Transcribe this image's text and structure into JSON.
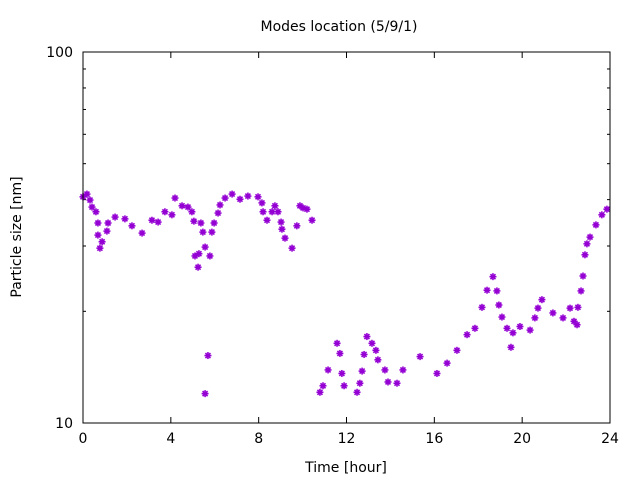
{
  "chart_data": {
    "type": "scatter",
    "title": "Modes location (5/9/1)",
    "xlabel": "Time [hour]",
    "ylabel": "Particle size [nm]",
    "xlim": [
      0,
      24
    ],
    "ylim": [
      10,
      100
    ],
    "yscale": "log",
    "grid": false,
    "legend": "none",
    "xticks": [
      "0",
      "4",
      "8",
      "12",
      "16",
      "20",
      "24"
    ],
    "yticks": [
      "10",
      "100"
    ],
    "series": [
      {
        "name": "modes",
        "color": "#9400d3",
        "marker": "star",
        "points": [
          [
            0.0,
            40.7
          ],
          [
            0.18,
            41.4
          ],
          [
            0.32,
            39.9
          ],
          [
            0.41,
            38.2
          ],
          [
            0.59,
            37.1
          ],
          [
            0.68,
            34.6
          ],
          [
            0.68,
            32.1
          ],
          [
            0.77,
            29.6
          ],
          [
            0.87,
            30.8
          ],
          [
            1.09,
            32.9
          ],
          [
            1.14,
            34.6
          ],
          [
            1.46,
            35.9
          ],
          [
            1.91,
            35.5
          ],
          [
            2.23,
            34.0
          ],
          [
            2.69,
            32.5
          ],
          [
            3.14,
            35.2
          ],
          [
            3.42,
            34.8
          ],
          [
            3.73,
            37.1
          ],
          [
            4.05,
            36.4
          ],
          [
            4.19,
            40.4
          ],
          [
            4.51,
            38.5
          ],
          [
            4.78,
            38.2
          ],
          [
            4.96,
            37.1
          ],
          [
            5.05,
            35.0
          ],
          [
            5.1,
            28.2
          ],
          [
            5.24,
            26.3
          ],
          [
            5.28,
            28.6
          ],
          [
            5.37,
            34.6
          ],
          [
            5.46,
            32.7
          ],
          [
            5.56,
            29.8
          ],
          [
            5.69,
            15.2
          ],
          [
            5.56,
            12.0
          ],
          [
            5.78,
            28.2
          ],
          [
            5.87,
            32.7
          ],
          [
            5.97,
            34.6
          ],
          [
            6.15,
            36.8
          ],
          [
            6.24,
            38.7
          ],
          [
            6.47,
            40.4
          ],
          [
            6.79,
            41.4
          ],
          [
            7.15,
            40.1
          ],
          [
            7.51,
            40.9
          ],
          [
            7.97,
            40.7
          ],
          [
            8.15,
            39.2
          ],
          [
            8.2,
            37.1
          ],
          [
            8.38,
            35.2
          ],
          [
            8.61,
            37.1
          ],
          [
            8.74,
            38.5
          ],
          [
            8.88,
            37.1
          ],
          [
            9.02,
            34.8
          ],
          [
            9.06,
            33.3
          ],
          [
            9.2,
            31.5
          ],
          [
            9.52,
            29.6
          ],
          [
            9.74,
            34.0
          ],
          [
            9.88,
            38.5
          ],
          [
            10.2,
            37.7
          ],
          [
            10.02,
            38.0
          ],
          [
            10.43,
            35.2
          ],
          [
            10.79,
            12.1
          ],
          [
            10.93,
            12.6
          ],
          [
            11.16,
            13.9
          ],
          [
            11.57,
            16.4
          ],
          [
            11.7,
            15.4
          ],
          [
            11.79,
            13.6
          ],
          [
            11.89,
            12.6
          ],
          [
            12.48,
            12.1
          ],
          [
            12.61,
            12.8
          ],
          [
            12.71,
            13.8
          ],
          [
            12.8,
            15.3
          ],
          [
            12.93,
            17.1
          ],
          [
            13.16,
            16.4
          ],
          [
            13.34,
            15.7
          ],
          [
            13.43,
            14.8
          ],
          [
            13.75,
            13.9
          ],
          [
            13.89,
            12.9
          ],
          [
            14.3,
            12.8
          ],
          [
            14.57,
            13.9
          ],
          [
            15.35,
            15.1
          ],
          [
            16.12,
            13.6
          ],
          [
            16.58,
            14.5
          ],
          [
            17.03,
            15.7
          ],
          [
            17.49,
            17.3
          ],
          [
            17.85,
            18.0
          ],
          [
            18.17,
            20.5
          ],
          [
            18.4,
            22.8
          ],
          [
            18.67,
            24.8
          ],
          [
            18.85,
            22.7
          ],
          [
            18.94,
            20.8
          ],
          [
            19.08,
            19.3
          ],
          [
            19.31,
            18.0
          ],
          [
            19.49,
            16.0
          ],
          [
            19.58,
            17.5
          ],
          [
            19.9,
            18.2
          ],
          [
            20.36,
            17.8
          ],
          [
            20.58,
            19.2
          ],
          [
            20.72,
            20.4
          ],
          [
            20.9,
            21.5
          ],
          [
            21.4,
            19.8
          ],
          [
            21.86,
            19.2
          ],
          [
            22.18,
            20.4
          ],
          [
            22.36,
            18.8
          ],
          [
            22.5,
            18.4
          ],
          [
            22.54,
            20.5
          ],
          [
            22.68,
            22.7
          ],
          [
            22.77,
            24.9
          ],
          [
            22.86,
            28.4
          ],
          [
            22.95,
            30.4
          ],
          [
            23.09,
            31.7
          ],
          [
            23.36,
            34.2
          ],
          [
            23.63,
            36.4
          ],
          [
            23.86,
            37.7
          ]
        ]
      }
    ]
  }
}
